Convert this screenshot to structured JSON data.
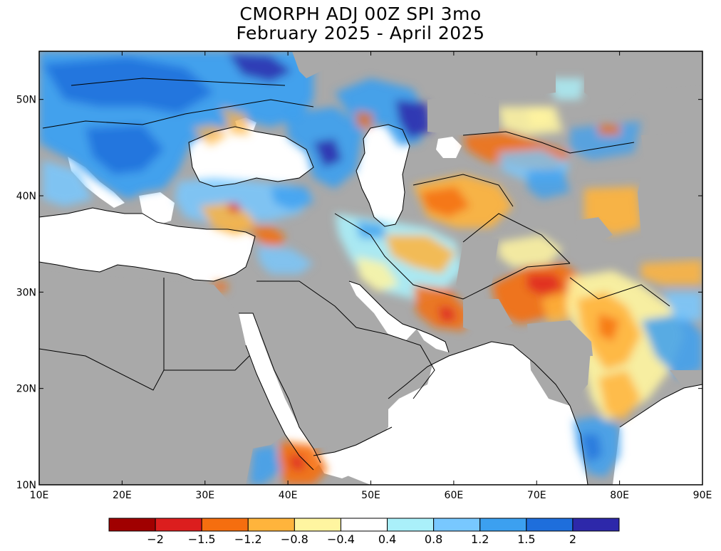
{
  "title_line1": "CMORPH ADJ 00Z SPI 3mo",
  "title_line2": "February 2025 - April 2025",
  "map": {
    "lon_range": [
      10,
      90
    ],
    "lat_range": [
      10,
      55
    ],
    "x_ticks": [
      "10E",
      "20E",
      "30E",
      "40E",
      "50E",
      "60E",
      "70E",
      "80E",
      "90E"
    ],
    "y_ticks": [
      "10N",
      "20N",
      "30N",
      "40N",
      "50N"
    ],
    "land_no_data_color": "#a9a9a9",
    "water_color": "#ffffff"
  },
  "colorbar": {
    "colors": [
      "#a00000",
      "#dc1e1e",
      "#f56e0f",
      "#ffb43c",
      "#fff5a0",
      "#ffffff",
      "#aaf0fa",
      "#78c8ff",
      "#3ca0f0",
      "#1e6edc",
      "#2d28aa"
    ],
    "labels": [
      "-2",
      "-1.5",
      "-1.2",
      "-0.8",
      "-0.4",
      "0.4",
      "0.8",
      "1.2",
      "1.5",
      "2"
    ]
  }
}
